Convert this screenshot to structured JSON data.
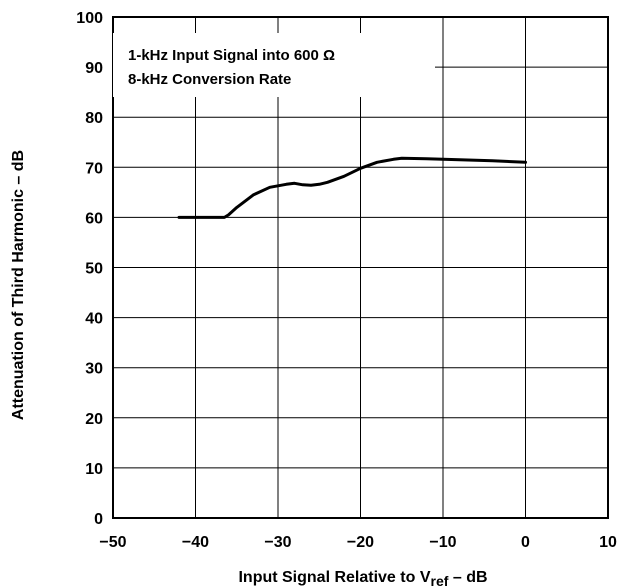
{
  "chart_data": {
    "type": "line",
    "title": "",
    "xlabel_main": "Input Signal Relative to V",
    "xlabel_sub": "ref",
    "xlabel_tail": " – dB",
    "ylabel": "Attenuation of Third Harmonic – dB",
    "xlim": [
      -50,
      10
    ],
    "ylim": [
      0,
      100
    ],
    "x_ticks": [
      -50,
      -40,
      -30,
      -20,
      -10,
      0,
      10
    ],
    "x_tick_labels": [
      "−50",
      "−40",
      "−30",
      "−20",
      "−10",
      "0",
      "10"
    ],
    "y_ticks": [
      0,
      10,
      20,
      30,
      40,
      50,
      60,
      70,
      80,
      90,
      100
    ],
    "y_tick_labels": [
      "0",
      "10",
      "20",
      "30",
      "40",
      "50",
      "60",
      "70",
      "80",
      "90",
      "100"
    ],
    "grid": true,
    "annotations": [
      "1-kHz Input Signal into 600 Ω",
      "8-kHz Conversion Rate"
    ],
    "series": [
      {
        "x": [
          -42,
          -40,
          -38,
          -36.5,
          -36,
          -35,
          -33,
          -31,
          -29,
          -28,
          -27,
          -26,
          -25,
          -24,
          -22,
          -20,
          -18,
          -16,
          -15,
          -12,
          -8,
          -4,
          0
        ],
        "y": [
          60,
          60,
          60,
          60,
          60.5,
          62,
          64.5,
          66,
          66.6,
          66.8,
          66.5,
          66.4,
          66.6,
          67,
          68.2,
          69.8,
          71,
          71.6,
          71.8,
          71.7,
          71.5,
          71.3,
          71
        ]
      }
    ]
  }
}
